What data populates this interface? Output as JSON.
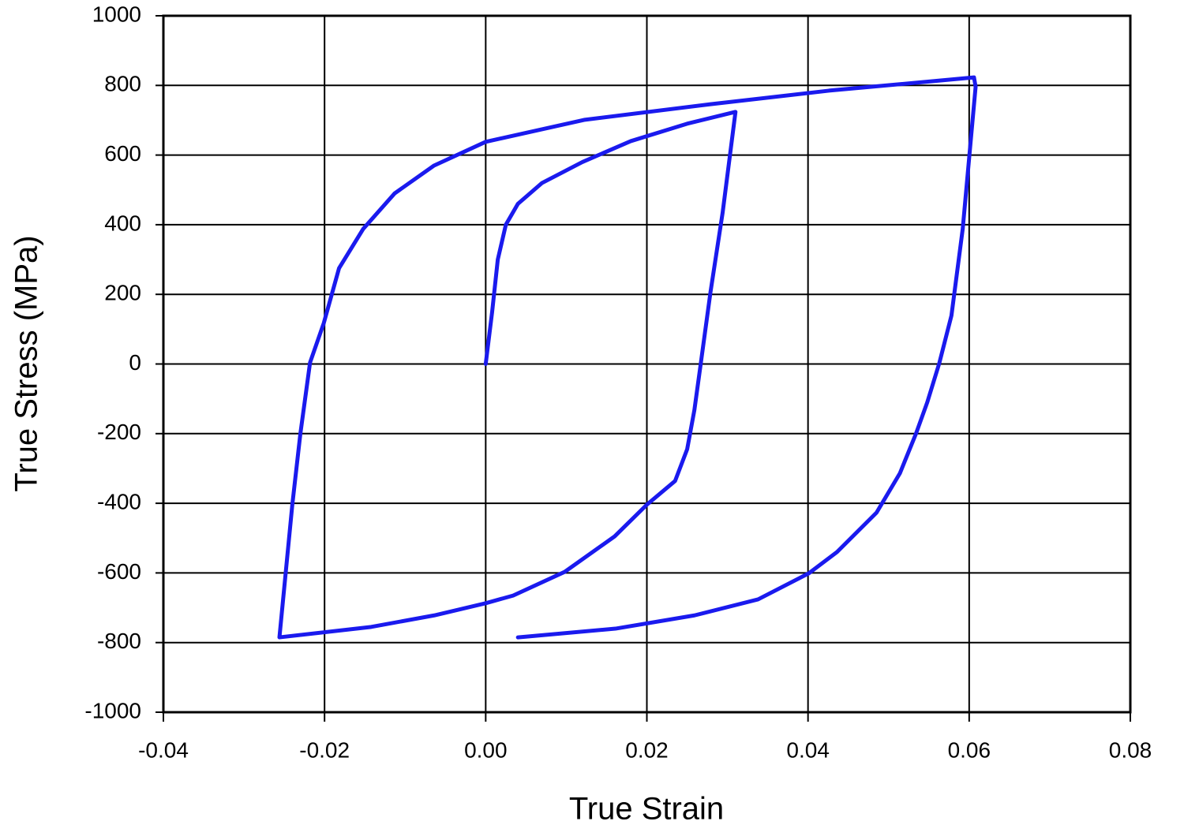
{
  "chart_data": {
    "type": "line",
    "xlabel": "True Strain",
    "ylabel": "True Stress (MPa)",
    "x": [
      0,
      0.0008,
      0.0015,
      0.0025,
      0.004,
      0.007,
      0.012,
      0.018,
      0.025,
      0.031,
      0.0294,
      0.0279,
      0.0267,
      0.0259,
      0.025,
      0.0235,
      0.02,
      0.016,
      0.0098,
      0.0034,
      0,
      -0.0064,
      -0.0142,
      -0.0256,
      -0.024,
      -0.023,
      -0.0218,
      -0.0201,
      -0.0182,
      -0.0152,
      -0.0113,
      -0.0064,
      0,
      0.0122,
      0.0279,
      0.0426,
      0.0606,
      0.0608,
      0.06,
      0.0592,
      0.0578,
      0.0563,
      0.0548,
      0.0534,
      0.0514,
      0.0485,
      0.0436,
      0.0401,
      0.0338,
      0.0259,
      0.0161,
      0.004
    ],
    "values": [
      0,
      150,
      300,
      400,
      460,
      520,
      580,
      640,
      690,
      724,
      434,
      207,
      3,
      -132,
      -245,
      -336,
      -404,
      -495,
      -597,
      -665,
      -687,
      -722,
      -755,
      -785,
      -404,
      -200,
      4,
      117,
      275,
      388,
      490,
      570,
      638,
      701,
      746,
      785,
      823,
      796,
      592,
      388,
      139,
      3,
      -110,
      -200,
      -314,
      -427,
      -540,
      -601,
      -676,
      -722,
      -760,
      -785
    ],
    "color": "#1a1aee",
    "xlim": [
      -0.04,
      0.08
    ],
    "xticks": [
      -0.04,
      -0.02,
      {
        "value": 0,
        "label": "0.00"
      },
      0.02,
      0.04,
      0.06,
      0.08
    ],
    "ylim": [
      -1000,
      1000
    ],
    "yticks": [
      -1000,
      -800,
      -600,
      -400,
      -200,
      0,
      200,
      400,
      600,
      800,
      1000
    ],
    "grid": true
  }
}
